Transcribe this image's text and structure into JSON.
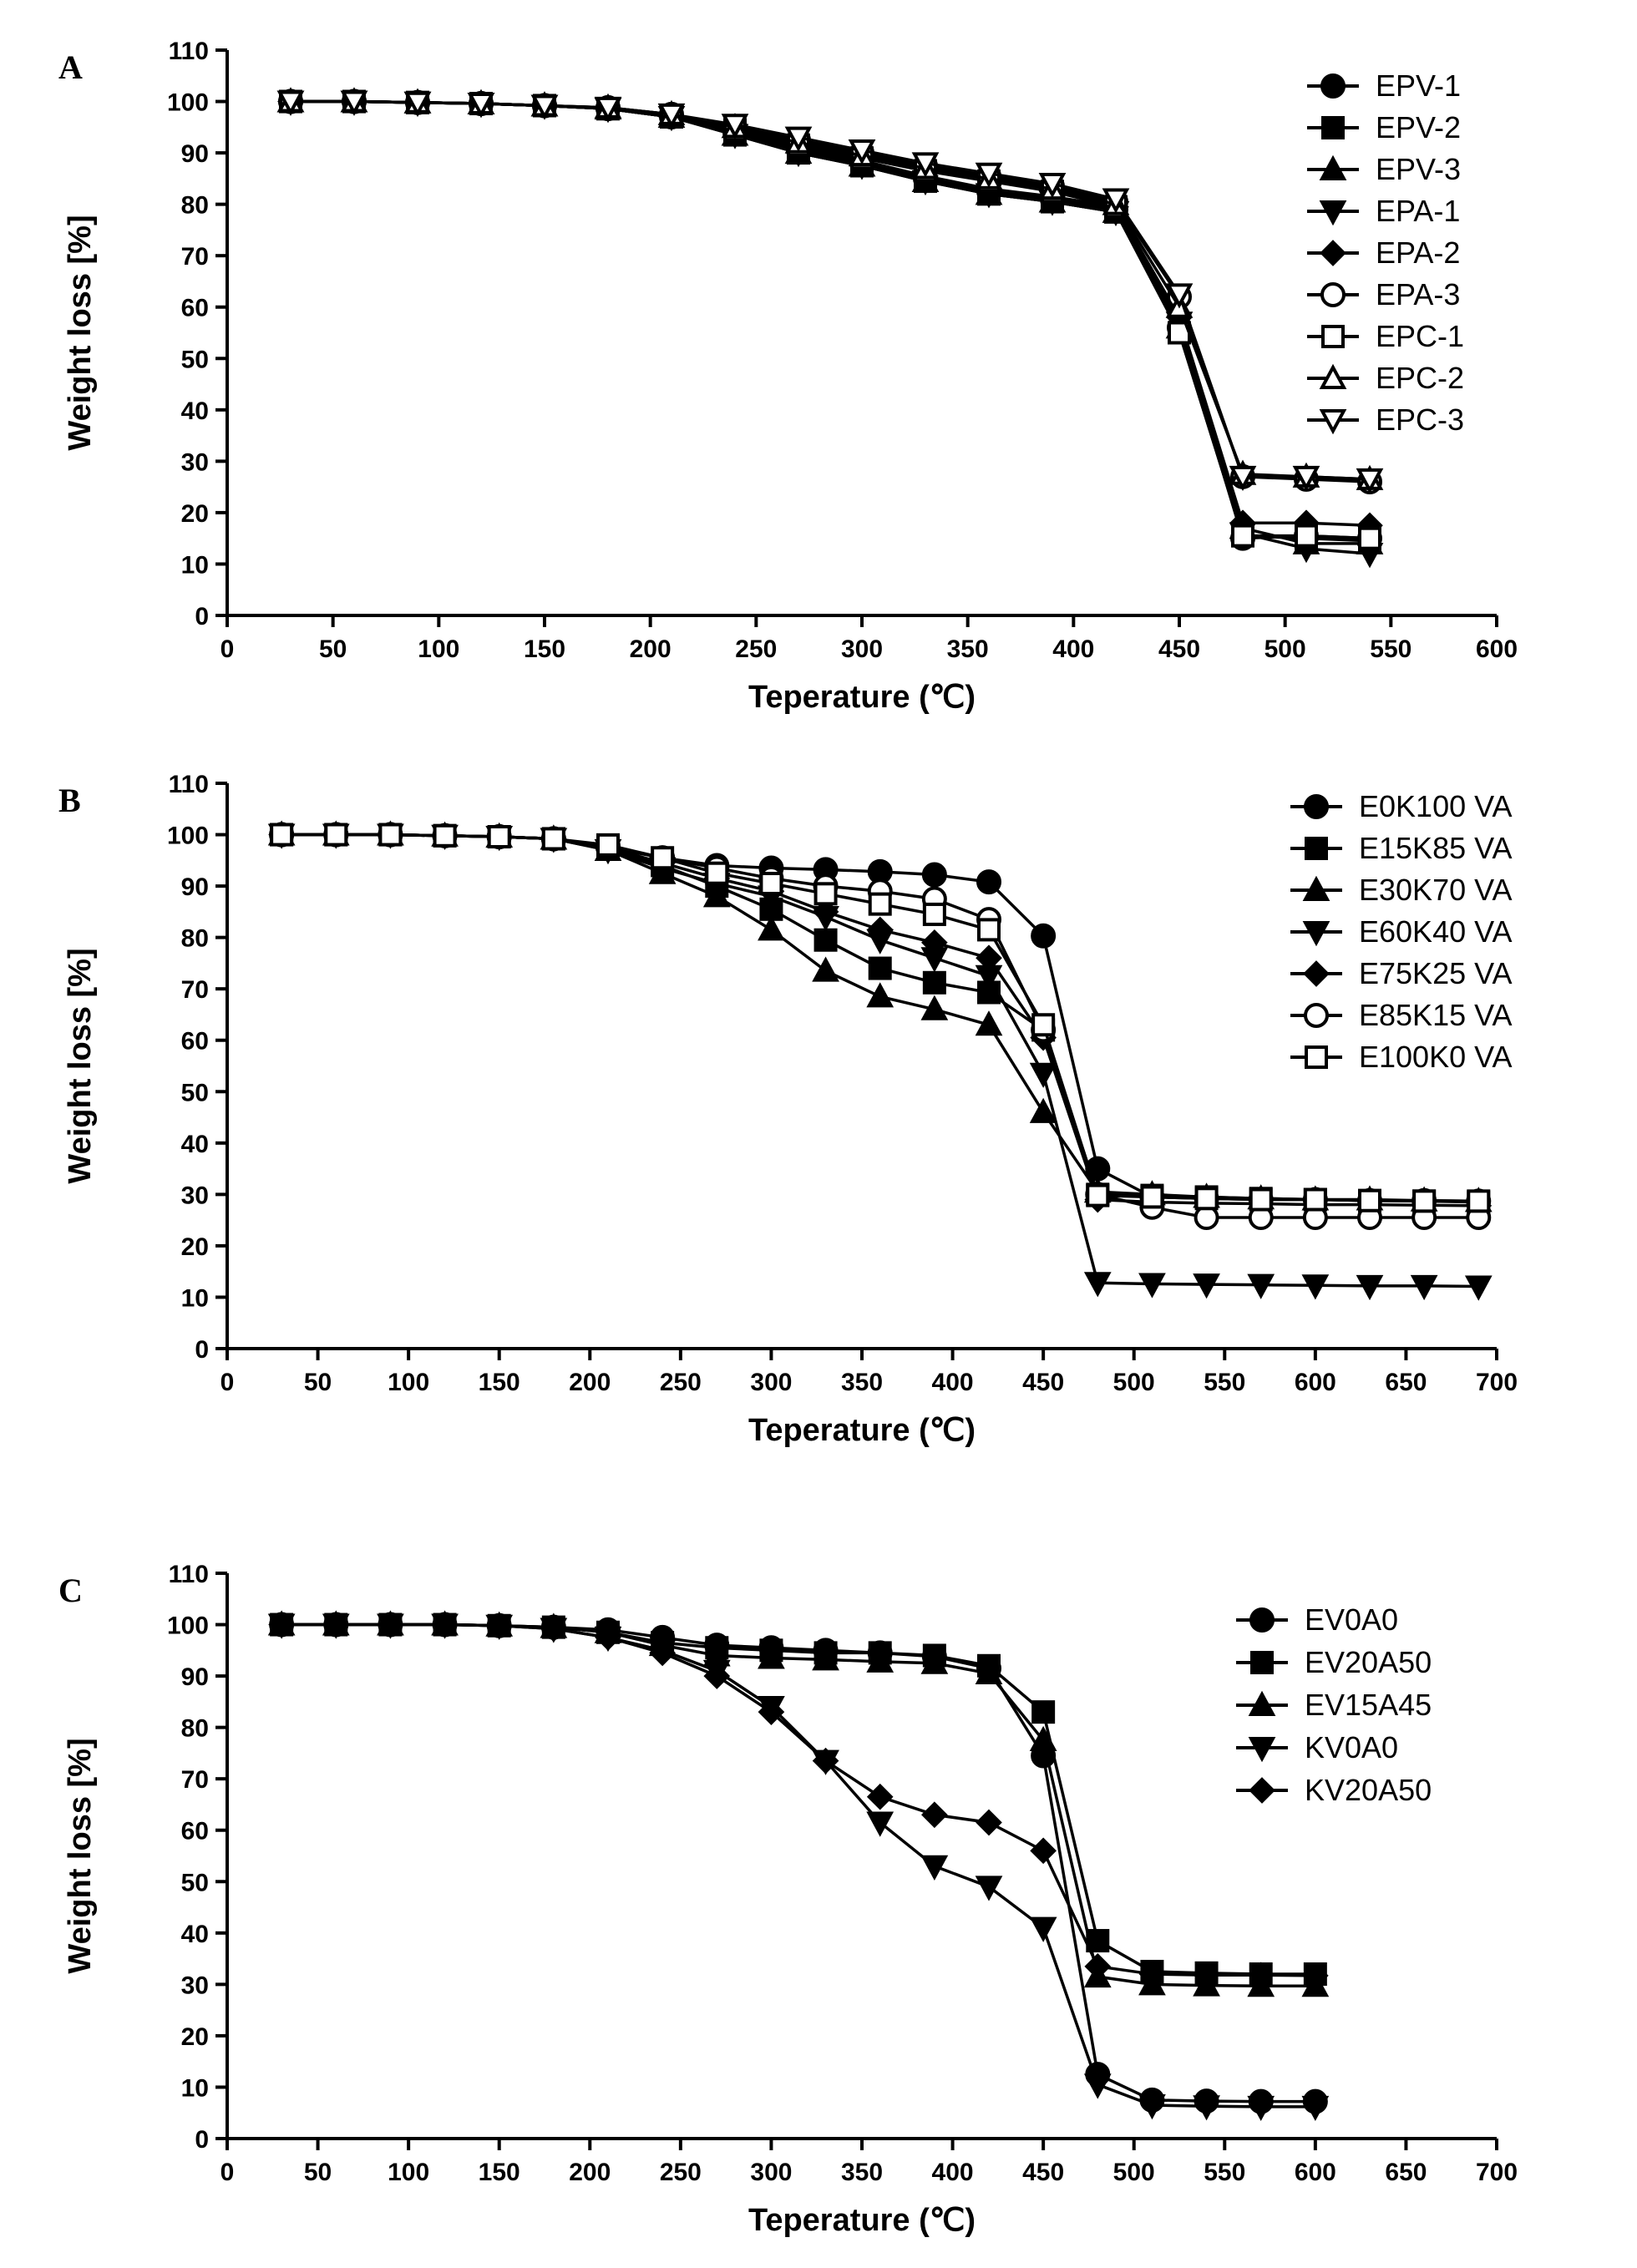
{
  "chart_data": [
    {
      "type": "line",
      "panel": "A",
      "xlabel": "Teperature (℃)",
      "ylabel": "Weight loss [%]",
      "xlim": [
        0,
        600
      ],
      "ylim": [
        0,
        110
      ],
      "xticks": [
        0,
        50,
        100,
        150,
        200,
        250,
        300,
        350,
        400,
        450,
        500,
        550,
        600
      ],
      "yticks": [
        0,
        10,
        20,
        30,
        40,
        50,
        60,
        70,
        80,
        90,
        100,
        110
      ],
      "grid": false,
      "legend_position": "top-right",
      "x": [
        30,
        60,
        90,
        120,
        150,
        180,
        210,
        240,
        270,
        300,
        330,
        360,
        390,
        420,
        450,
        480,
        510,
        540
      ],
      "series": [
        {
          "name": "EPV-1",
          "marker": "circle",
          "filled": true,
          "values": [
            100,
            100,
            99.8,
            99.6,
            99.2,
            98.6,
            97,
            94,
            90.5,
            88,
            85,
            82.5,
            81,
            79,
            56,
            15,
            15.5,
            15
          ]
        },
        {
          "name": "EPV-2",
          "marker": "square",
          "filled": true,
          "values": [
            100,
            100,
            99.8,
            99.6,
            99.2,
            98.6,
            97,
            93.5,
            90,
            87.5,
            84.5,
            82,
            80.5,
            78.5,
            55,
            15.5,
            15,
            14.5
          ]
        },
        {
          "name": "EPV-3",
          "marker": "triangle-up",
          "filled": true,
          "values": [
            100,
            100,
            99.8,
            99.6,
            99.2,
            98.6,
            97,
            93.5,
            90,
            87.5,
            84.5,
            82,
            80.5,
            78.5,
            56,
            17,
            14,
            14
          ]
        },
        {
          "name": "EPA-1",
          "marker": "triangle-down",
          "filled": true,
          "values": [
            100,
            100,
            99.8,
            99.6,
            99.2,
            98.6,
            97,
            93.5,
            90,
            87.5,
            84.5,
            82,
            80.5,
            78.5,
            57,
            16,
            13,
            12
          ]
        },
        {
          "name": "EPA-2",
          "marker": "diamond",
          "filled": true,
          "values": [
            100,
            100,
            99.8,
            99.6,
            99.2,
            98.6,
            97,
            94.5,
            91,
            88.5,
            85.5,
            83,
            81.5,
            79.5,
            58,
            18,
            18,
            17.5
          ]
        },
        {
          "name": "EPA-3",
          "marker": "circle",
          "filled": false,
          "values": [
            100,
            100,
            99.8,
            99.6,
            99.2,
            98.8,
            97.5,
            95,
            92.5,
            90,
            87.5,
            85.5,
            83.5,
            80.5,
            62,
            27,
            26.5,
            26
          ]
        },
        {
          "name": "EPC-1",
          "marker": "square",
          "filled": false,
          "values": [
            100,
            100,
            99.8,
            99.6,
            99.2,
            98.6,
            97.2,
            94.5,
            91.5,
            89,
            86.5,
            84.5,
            82.5,
            79.5,
            55,
            15.5,
            15.5,
            15
          ]
        },
        {
          "name": "EPC-2",
          "marker": "triangle-up",
          "filled": false,
          "values": [
            100,
            100,
            99.8,
            99.6,
            99.2,
            98.8,
            97.5,
            95,
            92,
            89.5,
            87,
            85,
            83,
            80,
            60,
            27.5,
            27,
            26.5
          ]
        },
        {
          "name": "EPC-3",
          "marker": "triangle-down",
          "filled": false,
          "values": [
            100,
            100,
            99.8,
            99.6,
            99.2,
            98.8,
            97.5,
            95.5,
            93,
            90.5,
            88,
            86,
            84,
            81,
            62.5,
            27,
            27,
            26.5
          ]
        }
      ]
    },
    {
      "type": "line",
      "panel": "B",
      "xlabel": "Teperature (℃)",
      "ylabel": "Weight loss [%]",
      "xlim": [
        0,
        700
      ],
      "ylim": [
        0,
        110
      ],
      "xticks": [
        0,
        50,
        100,
        150,
        200,
        250,
        300,
        350,
        400,
        450,
        500,
        550,
        600,
        650,
        700
      ],
      "yticks": [
        0,
        10,
        20,
        30,
        40,
        50,
        60,
        70,
        80,
        90,
        100,
        110
      ],
      "grid": false,
      "legend_position": "top-right",
      "x": [
        30,
        60,
        90,
        120,
        150,
        180,
        210,
        240,
        270,
        300,
        330,
        360,
        390,
        420,
        450,
        480,
        510,
        540,
        570,
        600,
        630,
        660,
        690
      ],
      "series": [
        {
          "name": "E0K100 VA",
          "marker": "circle",
          "filled": true,
          "values": [
            100,
            100,
            100,
            99.8,
            99.6,
            99.2,
            97.5,
            95.5,
            94,
            93.5,
            93.2,
            92.8,
            92.2,
            90.8,
            80.3,
            35,
            29.5,
            29.2,
            29,
            29,
            28.8,
            28.8,
            28.7
          ]
        },
        {
          "name": "E15K85 VA",
          "marker": "square",
          "filled": true,
          "values": [
            100,
            100,
            100,
            99.8,
            99.6,
            99.2,
            97.5,
            94,
            90,
            85.5,
            79.5,
            74,
            71.2,
            69.3,
            62,
            30,
            29.8,
            29.5,
            29.2,
            29,
            28.8,
            28.7,
            28.5
          ]
        },
        {
          "name": "E30K70 VA",
          "marker": "triangle-up",
          "filled": true,
          "values": [
            100,
            100,
            100,
            99.8,
            99.6,
            99.2,
            97,
            92.5,
            88,
            81.5,
            73.5,
            68.5,
            66,
            63,
            46,
            30.5,
            30,
            29.5,
            29.2,
            29,
            29,
            28.8,
            28.7
          ]
        },
        {
          "name": "E60K40 VA",
          "marker": "triangle-down",
          "filled": true,
          "values": [
            100,
            100,
            100,
            99.8,
            99.6,
            99.2,
            97,
            93.5,
            90.5,
            88,
            84,
            79.5,
            76,
            72.5,
            53.5,
            12.8,
            12.6,
            12.5,
            12.4,
            12.3,
            12.2,
            12.2,
            12.1
          ]
        },
        {
          "name": "E75K25 VA",
          "marker": "diamond",
          "filled": true,
          "values": [
            100,
            100,
            100,
            99.8,
            99.6,
            99.2,
            97.5,
            94.5,
            91.5,
            89,
            85,
            81.5,
            79,
            76,
            60.5,
            29,
            28.5,
            28.3,
            28.2,
            28,
            28,
            27.9,
            27.8
          ]
        },
        {
          "name": "E85K15 VA",
          "marker": "circle",
          "filled": false,
          "values": [
            100,
            100,
            100,
            99.8,
            99.6,
            99.2,
            97.8,
            95.5,
            93.5,
            91.5,
            90,
            89,
            87.5,
            83.5,
            62,
            30,
            27.5,
            25.5,
            25.5,
            25.5,
            25.5,
            25.5,
            25.5
          ]
        },
        {
          "name": "E100K0 VA",
          "marker": "square",
          "filled": false,
          "values": [
            100,
            100,
            100,
            99.8,
            99.6,
            99.2,
            98,
            95.5,
            92.5,
            90.5,
            88.5,
            86.5,
            84.5,
            81.5,
            63,
            29.8,
            29.5,
            29.2,
            29,
            29,
            28.8,
            28.7,
            28.7
          ]
        }
      ]
    },
    {
      "type": "line",
      "panel": "C",
      "xlabel": "Teperature (℃)",
      "ylabel": "Weight loss [%]",
      "xlim": [
        0,
        700
      ],
      "ylim": [
        0,
        110
      ],
      "xticks": [
        0,
        50,
        100,
        150,
        200,
        250,
        300,
        350,
        400,
        450,
        500,
        550,
        600,
        650,
        700
      ],
      "yticks": [
        0,
        10,
        20,
        30,
        40,
        50,
        60,
        70,
        80,
        90,
        100,
        110
      ],
      "grid": false,
      "legend_position": "top-right",
      "x": [
        30,
        60,
        90,
        120,
        150,
        180,
        210,
        240,
        270,
        300,
        330,
        360,
        390,
        420,
        450,
        480,
        510,
        540,
        570,
        600
      ],
      "series": [
        {
          "name": "EV0A0",
          "marker": "circle",
          "filled": true,
          "values": [
            100,
            100,
            100,
            100,
            99.8,
            99.5,
            99,
            97.5,
            96,
            95.5,
            95,
            94.5,
            93.8,
            91.5,
            74.5,
            12.5,
            7.5,
            7.3,
            7.2,
            7.2
          ]
        },
        {
          "name": "EV20A50",
          "marker": "square",
          "filled": true,
          "values": [
            100,
            100,
            100,
            100,
            99.8,
            99.5,
            98.5,
            96.5,
            95.5,
            95,
            94.5,
            94.5,
            94,
            92,
            83,
            38.5,
            32.5,
            32.2,
            32,
            32
          ]
        },
        {
          "name": "EV15A45",
          "marker": "triangle-up",
          "filled": true,
          "values": [
            100,
            100,
            100,
            100,
            99.8,
            99.5,
            98.5,
            96,
            94,
            93.5,
            93.2,
            92.8,
            92.5,
            90.5,
            77.5,
            31.5,
            30,
            29.8,
            29.7,
            29.7
          ]
        },
        {
          "name": "KV0A0",
          "marker": "triangle-down",
          "filled": true,
          "values": [
            100,
            100,
            100,
            100,
            99.8,
            99.2,
            97.5,
            95,
            91,
            84,
            73.5,
            61.5,
            53,
            49,
            41,
            10.5,
            6.5,
            6.3,
            6.2,
            6.2
          ]
        },
        {
          "name": "KV20A50",
          "marker": "diamond",
          "filled": true,
          "values": [
            100,
            100,
            100,
            100,
            99.8,
            99.2,
            97.5,
            94.5,
            90,
            83,
            73.5,
            66.5,
            63,
            61.5,
            56,
            33.5,
            32,
            31.8,
            31.8,
            31.7
          ]
        }
      ]
    }
  ]
}
